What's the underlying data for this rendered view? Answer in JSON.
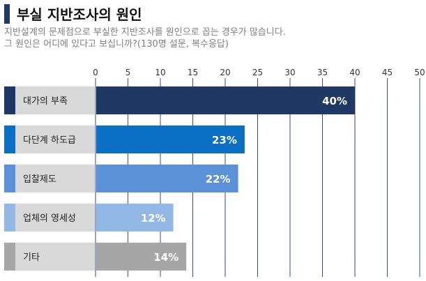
{
  "header": {
    "title": "부실 지반조사의 원인",
    "subtitle_line1": "지반설계의 문제점으로 부실한 지반조사를 원인으로 꼽는 경우가 많습니다.",
    "subtitle_line2": "그 원인은 어디에 있다고 보십니까?(130명 설문, 복수응답)"
  },
  "chart_data": {
    "type": "bar",
    "orientation": "horizontal",
    "title": "부실 지반조사의 원인",
    "categories": [
      "대가의 부족",
      "다단계 하도급",
      "입찰제도",
      "업체의 영세성",
      "기타"
    ],
    "values": [
      40,
      23,
      22,
      12,
      14
    ],
    "value_labels": [
      "40%",
      "23%",
      "22%",
      "12%",
      "14%"
    ],
    "xlim": [
      0,
      50
    ],
    "xticks": [
      0,
      5,
      10,
      15,
      20,
      25,
      30,
      35,
      40,
      45,
      50
    ],
    "xaxis_position": "top",
    "grid": true,
    "bar_colors": [
      "#1f3864",
      "#0b6fc4",
      "#5b91d6",
      "#93b8e6",
      "#a6a6a6"
    ],
    "label_bg_color": "#d9d9d9",
    "grid_color": "#2e4e8c"
  }
}
